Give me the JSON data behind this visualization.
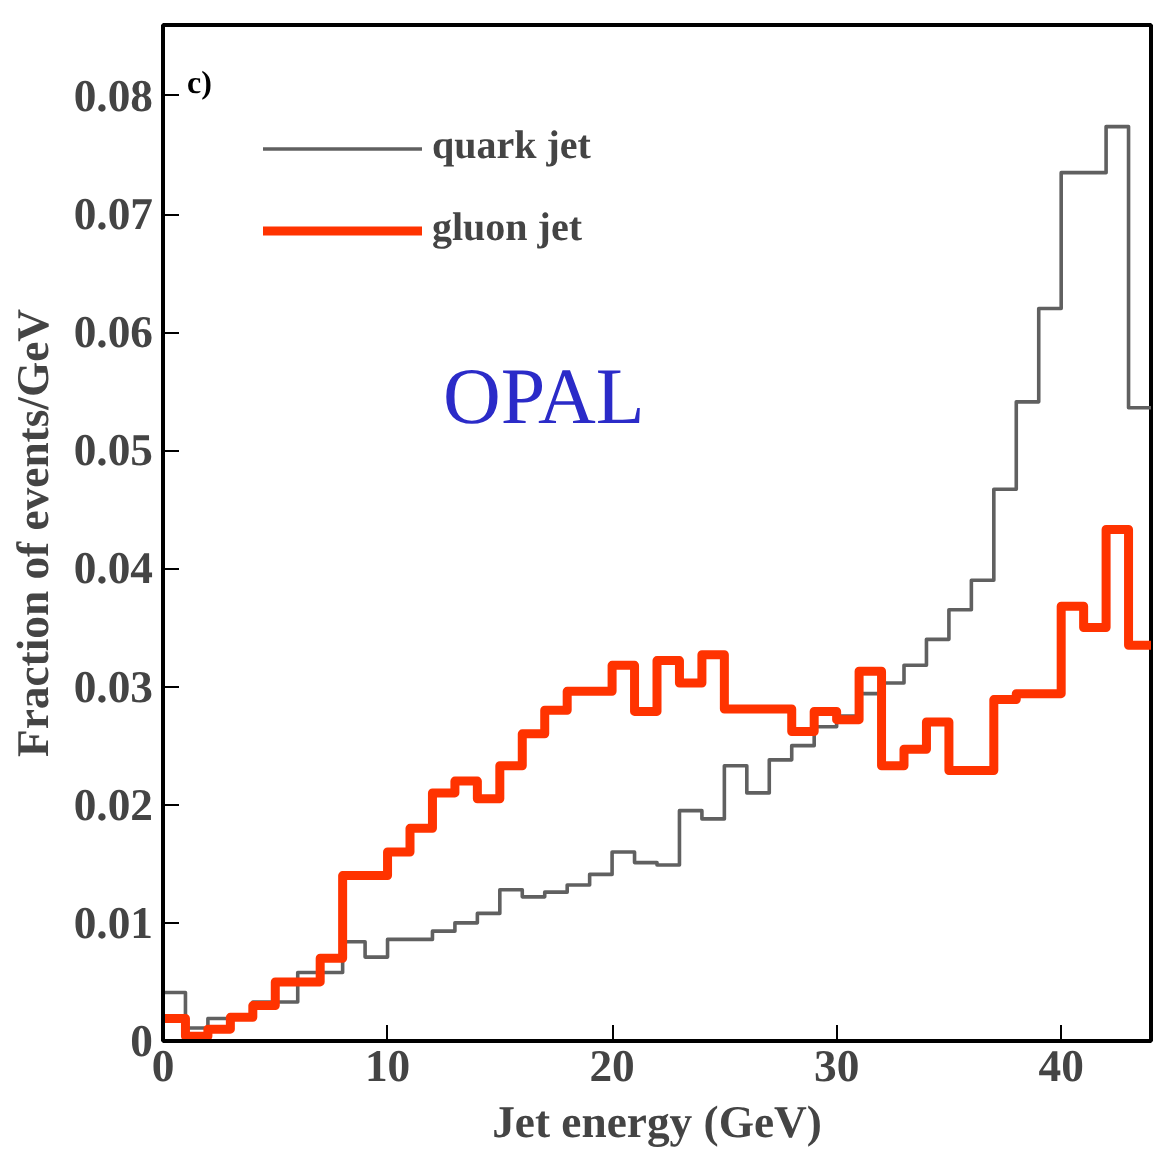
{
  "chart_data": {
    "type": "histogram",
    "xlabel": "Jet energy (GeV)",
    "ylabel": "Fraction of events/GeV",
    "bins": [
      0,
      1,
      2,
      3,
      4,
      5,
      6,
      7,
      8,
      9,
      10,
      11,
      12,
      13,
      14,
      15,
      16,
      17,
      18,
      19,
      20,
      21,
      22,
      23,
      24,
      25,
      26,
      27,
      28,
      29,
      30,
      31,
      32,
      33,
      34,
      35,
      36,
      37,
      38,
      39,
      40,
      41,
      42,
      43,
      44
    ],
    "series": [
      {
        "name": "quark jet",
        "color": "#606060",
        "values": [
          0.0041,
          0.0011,
          0.0019,
          0.0019,
          0.0033,
          0.0033,
          0.0058,
          0.0058,
          0.0084,
          0.0071,
          0.0086,
          0.0086,
          0.0093,
          0.01,
          0.0108,
          0.0128,
          0.0122,
          0.0126,
          0.0132,
          0.0141,
          0.016,
          0.0151,
          0.0149,
          0.0195,
          0.0188,
          0.0233,
          0.021,
          0.0238,
          0.025,
          0.0266,
          0.0275,
          0.0294,
          0.0303,
          0.0318,
          0.034,
          0.0365,
          0.039,
          0.0467,
          0.0541,
          0.062,
          0.0735,
          0.0735,
          0.0774,
          0.0536
        ]
      },
      {
        "name": "gluon jet",
        "color": "#ff3300",
        "values": [
          0.0019,
          0.0004,
          0.001,
          0.002,
          0.003,
          0.005,
          0.005,
          0.007,
          0.014,
          0.014,
          0.016,
          0.018,
          0.021,
          0.022,
          0.0205,
          0.0233,
          0.026,
          0.028,
          0.0296,
          0.0296,
          0.0318,
          0.0279,
          0.0322,
          0.0303,
          0.0327,
          0.0281,
          0.0281,
          0.0281,
          0.0262,
          0.0279,
          0.0272,
          0.0313,
          0.0233,
          0.0247,
          0.027,
          0.0229,
          0.0229,
          0.0289,
          0.0294,
          0.0294,
          0.0368,
          0.035,
          0.0433,
          0.0335
        ]
      }
    ],
    "xlim": [
      0,
      44
    ],
    "xticks": [
      0,
      10,
      20,
      30,
      40
    ],
    "ylim": [
      0,
      0.086
    ],
    "yticks": [
      0,
      0.01,
      0.02,
      0.03,
      0.04,
      0.05,
      0.06,
      0.07,
      0.08
    ],
    "grid": false,
    "legend": "top left",
    "annotations": [
      "c)",
      "OPAL"
    ]
  }
}
